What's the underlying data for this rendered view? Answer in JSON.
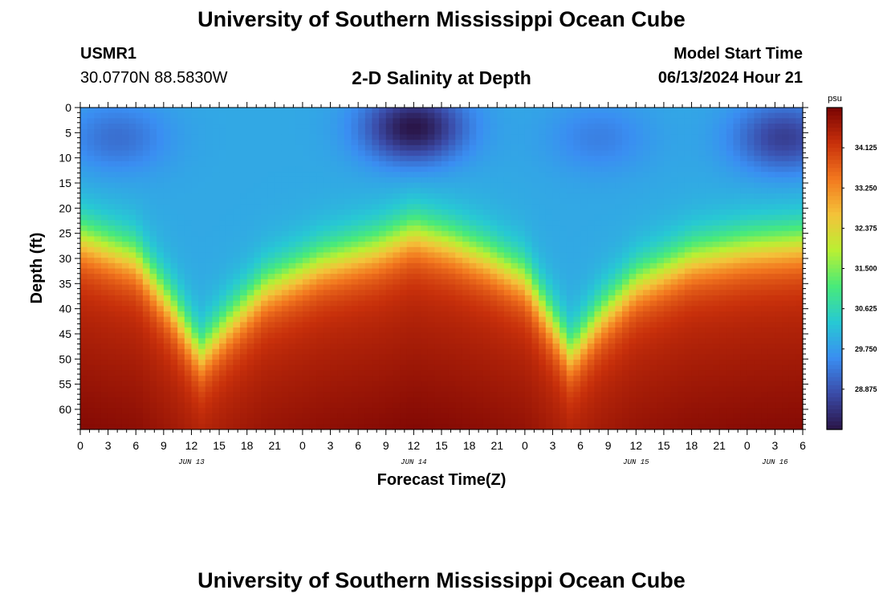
{
  "header": {
    "title": "University of Southern Mississippi Ocean Cube",
    "station_id": "USMR1",
    "station_coords": "30.0770N  88.5830W",
    "chart_title": "2-D Salinity at Depth",
    "model_start_label": "Model Start Time",
    "model_start_value": "06/13/2024 Hour 21"
  },
  "footer": {
    "title": "University of Southern Mississippi Ocean Cube"
  },
  "chart_data": {
    "type": "heatmap",
    "title": "2-D Salinity at Depth",
    "xlabel": "Forecast Time(Z)",
    "ylabel": "Depth (ft)",
    "colorbar_unit": "psu",
    "x_tick_labels": [
      "0",
      "3",
      "6",
      "9",
      "12",
      "15",
      "18",
      "21",
      "0",
      "3",
      "6",
      "9",
      "12",
      "15",
      "18",
      "21",
      "0",
      "3",
      "6",
      "9",
      "12",
      "15",
      "18",
      "21",
      "0",
      "3",
      "6"
    ],
    "x_range_hours": [
      0,
      78
    ],
    "date_labels": [
      {
        "label": "JUN 13",
        "hour": 12
      },
      {
        "label": "JUN 14",
        "hour": 36
      },
      {
        "label": "JUN 15",
        "hour": 60
      },
      {
        "label": "JUN 16",
        "hour": 75
      }
    ],
    "y_ticks": [
      0,
      5,
      10,
      15,
      20,
      25,
      30,
      35,
      40,
      45,
      50,
      55,
      60
    ],
    "ylim": [
      0,
      64
    ],
    "y_inverted": true,
    "colorbar_labels": [
      "34.125",
      "33.250",
      "32.375",
      "31.500",
      "30.625",
      "29.750",
      "28.875"
    ],
    "colorbar_range": [
      28.0,
      35.0
    ],
    "colormap": [
      "#2a1548",
      "#3b4ba8",
      "#3a8ef2",
      "#27c9d3",
      "#48ea7a",
      "#b9f033",
      "#f4c33a",
      "#f3781f",
      "#c8300b",
      "#7a0403"
    ],
    "thermocline_depth_ft": [
      [
        0,
        26
      ],
      [
        6,
        30
      ],
      [
        10,
        40
      ],
      [
        13,
        49
      ],
      [
        16,
        43
      ],
      [
        20,
        36
      ],
      [
        26,
        31
      ],
      [
        32,
        28
      ],
      [
        36,
        25
      ],
      [
        40,
        27
      ],
      [
        44,
        30
      ],
      [
        48,
        34
      ],
      [
        51,
        43
      ],
      [
        53,
        49
      ],
      [
        56,
        42
      ],
      [
        60,
        35
      ],
      [
        66,
        30
      ],
      [
        72,
        28
      ],
      [
        78,
        27
      ]
    ],
    "surface_low_salinity_cores": [
      {
        "hour": 36,
        "depth_ft": 4,
        "psu": 28.0
      },
      {
        "hour": 4,
        "depth_ft": 6,
        "psu": 29.2
      },
      {
        "hour": 76,
        "depth_ft": 6,
        "psu": 28.6
      },
      {
        "hour": 56,
        "depth_ft": 6,
        "psu": 29.4
      }
    ],
    "bottom_max_psu": 34.9
  }
}
